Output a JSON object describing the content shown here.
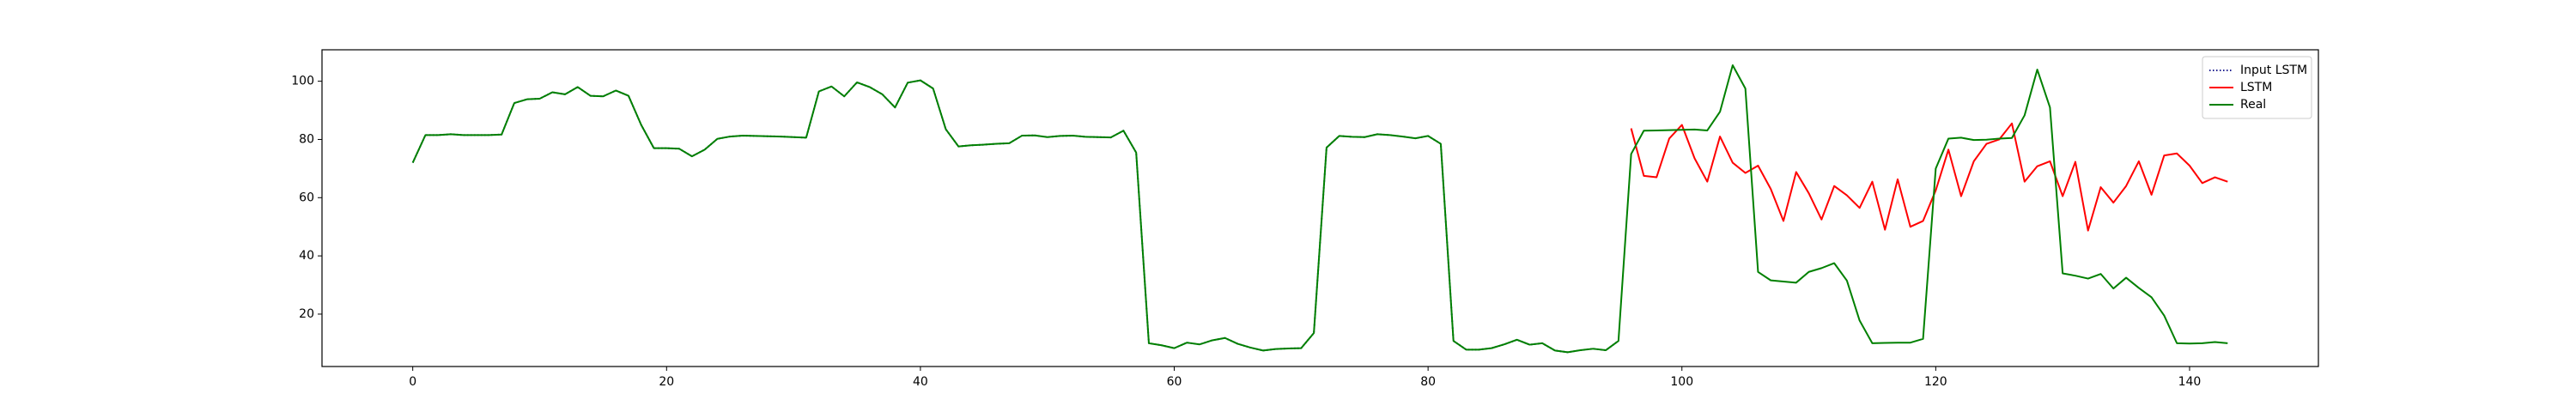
{
  "chart_data": {
    "type": "line",
    "x": [
      0,
      1,
      2,
      3,
      4,
      5,
      6,
      7,
      8,
      9,
      10,
      11,
      12,
      13,
      14,
      15,
      16,
      17,
      18,
      19,
      20,
      21,
      22,
      23,
      24,
      25,
      26,
      27,
      28,
      29,
      30,
      31,
      32,
      33,
      34,
      35,
      36,
      37,
      38,
      39,
      40,
      41,
      42,
      43,
      44,
      45,
      46,
      47,
      48,
      49,
      50,
      51,
      52,
      53,
      54,
      55,
      56,
      57,
      58,
      59,
      60,
      61,
      62,
      63,
      64,
      65,
      66,
      67,
      68,
      69,
      70,
      71,
      72,
      73,
      74,
      75,
      76,
      77,
      78,
      79,
      80,
      81,
      82,
      83,
      84,
      85,
      86,
      87,
      88,
      89,
      90,
      91,
      92,
      93,
      94,
      95,
      96,
      97,
      98,
      99,
      100,
      101,
      102,
      103,
      104,
      105,
      106,
      107,
      108,
      109,
      110,
      111,
      112,
      113,
      114,
      115,
      116,
      117,
      118,
      119,
      120,
      121,
      122,
      123,
      124,
      125,
      126,
      127,
      128,
      129,
      130,
      131,
      132,
      133,
      134,
      135,
      136,
      137,
      138,
      139,
      140,
      141,
      142,
      143
    ],
    "series": [
      {
        "name": "Input LSTM",
        "color": "#1f1f8f",
        "dash": "dotted",
        "values": [
          72,
          81.5,
          81.5,
          81.8,
          81.5,
          81.5,
          81.5,
          81.7,
          92.5,
          93.8,
          94,
          96.2,
          95.5,
          98,
          95,
          94.8,
          96.8,
          95,
          85,
          77,
          77,
          76.8,
          74.2,
          76.5,
          80.2,
          81,
          81.3,
          81.2,
          81.1,
          81,
          80.8,
          80.6,
          96.5,
          98.2,
          94.8,
          99.6,
          98,
          95.5,
          91,
          99.5,
          100.3,
          97.5,
          83.5,
          77.6,
          78,
          78.2,
          78.5,
          78.7,
          81.3,
          81.4,
          80.8,
          81.2,
          81.3,
          80.9,
          80.8,
          80.7,
          83,
          75.5,
          10,
          9.3,
          8.3,
          10.2,
          9.6,
          11,
          11.8,
          9.8,
          8.5,
          7.5,
          8,
          8.2,
          8.3,
          13.5,
          77.2,
          81.2,
          80.9,
          80.8,
          81.8,
          81.5,
          81,
          80.4,
          81.2,
          78.5,
          10.8,
          7.8,
          7.8,
          8.3,
          9.6,
          11.2,
          9.5,
          10,
          7.5,
          6.9,
          7.6,
          8.1,
          7.6,
          10.8,
          null,
          null,
          null,
          null,
          null,
          null,
          null,
          null,
          null,
          null,
          null,
          null,
          null,
          null,
          null,
          null,
          null,
          null,
          null,
          null,
          null,
          null,
          null,
          null,
          null,
          null,
          null,
          null,
          null,
          null,
          null,
          null,
          null,
          null,
          null,
          null,
          null,
          null,
          null,
          null,
          null,
          null,
          null,
          null,
          null,
          null,
          null,
          null
        ]
      },
      {
        "name": "LSTM",
        "color": "#ff0000",
        "dash": "solid",
        "values": [
          null,
          null,
          null,
          null,
          null,
          null,
          null,
          null,
          null,
          null,
          null,
          null,
          null,
          null,
          null,
          null,
          null,
          null,
          null,
          null,
          null,
          null,
          null,
          null,
          null,
          null,
          null,
          null,
          null,
          null,
          null,
          null,
          null,
          null,
          null,
          null,
          null,
          null,
          null,
          null,
          null,
          null,
          null,
          null,
          null,
          null,
          null,
          null,
          null,
          null,
          null,
          null,
          null,
          null,
          null,
          null,
          null,
          null,
          null,
          null,
          null,
          null,
          null,
          null,
          null,
          null,
          null,
          null,
          null,
          null,
          null,
          null,
          null,
          null,
          null,
          null,
          null,
          null,
          null,
          null,
          null,
          null,
          null,
          null,
          null,
          null,
          null,
          null,
          null,
          null,
          null,
          null,
          null,
          null,
          null,
          null,
          83.8,
          67.5,
          67,
          80.3,
          85,
          73.5,
          65.5,
          81,
          72,
          68.5,
          71,
          63,
          52,
          68.8,
          61.5,
          52.5,
          64,
          60.8,
          56.5,
          65.5,
          49,
          66.3,
          50,
          52,
          62.5,
          76.5,
          60.5,
          72.5,
          78.5,
          80,
          85.5,
          65.5,
          70.8,
          72.5,
          60.5,
          72.3,
          48.7,
          63.6,
          58.3,
          64,
          72.5,
          61,
          74.5,
          75.2,
          71,
          65,
          67,
          65.5
        ]
      },
      {
        "name": "Real",
        "color": "#008000",
        "dash": "solid",
        "values": [
          72,
          81.5,
          81.5,
          81.8,
          81.5,
          81.5,
          81.5,
          81.7,
          92.5,
          93.8,
          94,
          96.2,
          95.5,
          98,
          95,
          94.8,
          96.8,
          95,
          85,
          77,
          77,
          76.8,
          74.2,
          76.5,
          80.2,
          81,
          81.3,
          81.2,
          81.1,
          81,
          80.8,
          80.6,
          96.5,
          98.2,
          94.8,
          99.6,
          98,
          95.5,
          91,
          99.5,
          100.3,
          97.5,
          83.5,
          77.6,
          78,
          78.2,
          78.5,
          78.7,
          81.3,
          81.4,
          80.8,
          81.2,
          81.3,
          80.9,
          80.8,
          80.7,
          83,
          75.5,
          10,
          9.3,
          8.3,
          10.2,
          9.6,
          11,
          11.8,
          9.8,
          8.5,
          7.5,
          8,
          8.2,
          8.3,
          13.5,
          77.2,
          81.2,
          80.9,
          80.8,
          81.8,
          81.5,
          81,
          80.4,
          81.2,
          78.5,
          10.8,
          7.8,
          7.8,
          8.3,
          9.6,
          11.2,
          9.5,
          10,
          7.5,
          6.9,
          7.6,
          8.1,
          7.6,
          10.8,
          75,
          83,
          83.1,
          83.2,
          83.3,
          83.4,
          83.1,
          89.5,
          105.5,
          97.5,
          34.5,
          31.6,
          31.2,
          30.8,
          34.5,
          35.8,
          37.5,
          31.5,
          17.8,
          10,
          10.1,
          10.2,
          10.2,
          11.5,
          70,
          80.3,
          80.6,
          79.8,
          79.9,
          80.3,
          80.5,
          88.3,
          104,
          91,
          34,
          33.2,
          32.2,
          33.8,
          28.8,
          32.5,
          29,
          25.8,
          19.5,
          10,
          9.9,
          10,
          10.4,
          10
        ]
      }
    ],
    "xlim": [
      -7.15,
      150.15
    ],
    "ylim": [
      2,
      110.8
    ],
    "xticks": [
      0,
      20,
      40,
      60,
      80,
      100,
      120,
      140
    ],
    "yticks": [
      20,
      40,
      60,
      80,
      100
    ],
    "grid": false,
    "legend": "upper right"
  }
}
